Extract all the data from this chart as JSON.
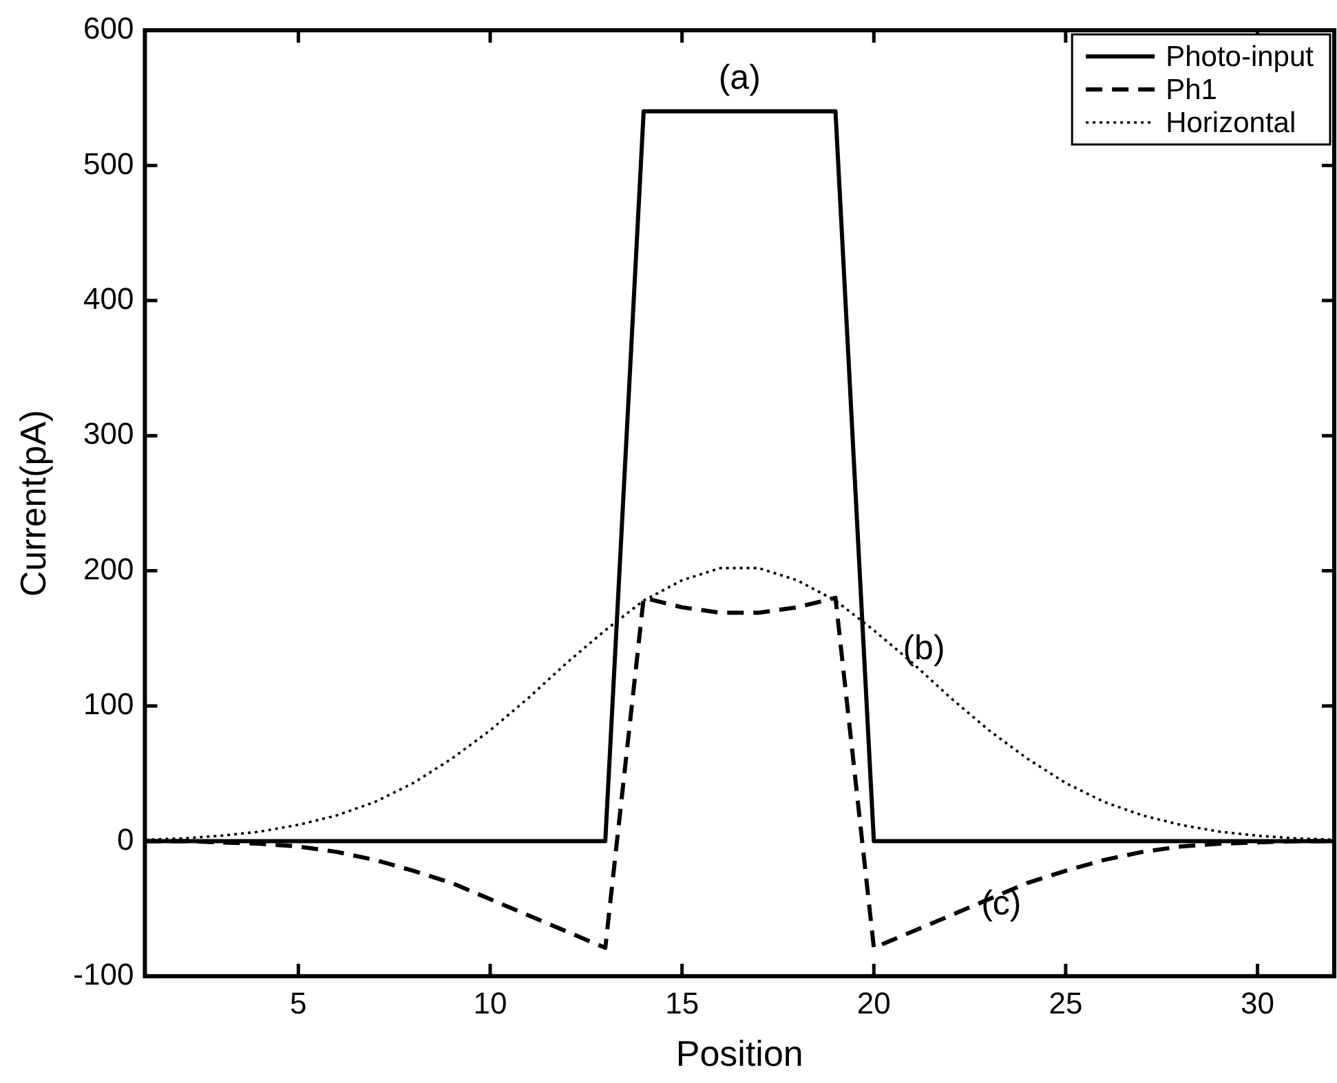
{
  "chart_data": {
    "type": "line",
    "xlabel": "Position",
    "ylabel": "Current(pA)",
    "x": [
      1,
      2,
      3,
      4,
      5,
      6,
      7,
      8,
      9,
      10,
      11,
      12,
      13,
      14,
      15,
      16,
      17,
      18,
      19,
      20,
      21,
      22,
      23,
      24,
      25,
      26,
      27,
      28,
      29,
      30,
      31,
      32
    ],
    "series": [
      {
        "name": "Photo-input",
        "color": "#000000",
        "line_style": "solid",
        "values": [
          0,
          0,
          0,
          0,
          0,
          0,
          0,
          0,
          0,
          0,
          0,
          0,
          0,
          540,
          540,
          540,
          540,
          540,
          540,
          0,
          0,
          0,
          0,
          0,
          0,
          0,
          0,
          0,
          0,
          0,
          0,
          0
        ]
      },
      {
        "name": "Ph1",
        "color": "#000000",
        "line_style": "dashed",
        "values": [
          0,
          0,
          -1,
          -2,
          -4,
          -8,
          -14,
          -22,
          -31,
          -43,
          -55,
          -67,
          -79,
          180,
          173,
          169,
          169,
          173,
          180,
          -79,
          -67,
          -55,
          -43,
          -31,
          -22,
          -14,
          -8,
          -4,
          -2,
          -1,
          0,
          0
        ]
      },
      {
        "name": "Horizontal",
        "color": "#000000",
        "line_style": "dotted",
        "values": [
          1,
          2,
          4,
          7,
          12,
          19,
          29,
          43,
          61,
          82,
          106,
          132,
          156,
          178,
          193,
          202,
          202,
          193,
          178,
          156,
          132,
          106,
          82,
          61,
          43,
          29,
          19,
          12,
          7,
          4,
          2,
          1
        ]
      }
    ],
    "xlim": [
      1,
      32
    ],
    "xticks": [
      5,
      10,
      15,
      20,
      25,
      30
    ],
    "ylim": [
      -100,
      600
    ],
    "yticks": [
      -100,
      0,
      100,
      200,
      300,
      400,
      500,
      600
    ],
    "grid": false,
    "legend": "top right",
    "marker": "none",
    "annotations": [
      "(a)",
      "(b)",
      "(c)"
    ]
  }
}
